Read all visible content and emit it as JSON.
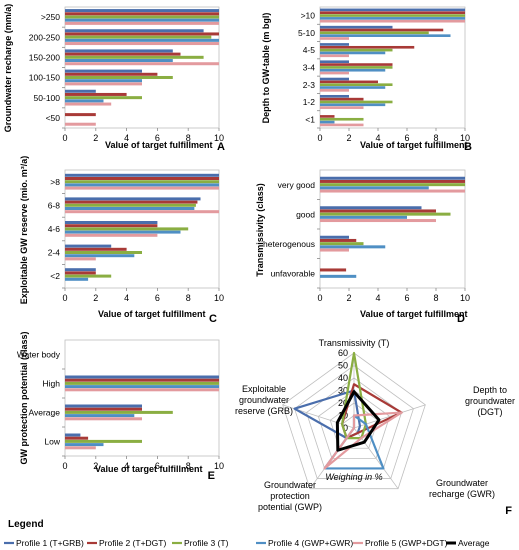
{
  "series": [
    {
      "name": "Profile 1 (T+GRB)",
      "color": "#4a6eac"
    },
    {
      "name": "Profile 2 (T+DGT)",
      "color": "#a83a37"
    },
    {
      "name": "Profile 3 (T)",
      "color": "#8aae42"
    },
    {
      "name": "Profile 4 (GWP+GWR)",
      "color": "#4f8fc4"
    },
    {
      "name": "Profile 5 (GWP+DGT)",
      "color": "#e39a9e"
    },
    {
      "name": "Average",
      "color": "#000000"
    }
  ],
  "legend": {
    "title": "Legend"
  },
  "chart_data": [
    {
      "id": "A",
      "type": "bar",
      "orientation": "horizontal",
      "ylabel": "Groundwater recharge (mm/a)",
      "xlabel": "Value of target fulfillment",
      "xlim": [
        0,
        10
      ],
      "xticks": [
        "0",
        "2",
        "4",
        "6",
        "8",
        "10"
      ],
      "categories": [
        ">250",
        "200-250",
        "150-200",
        "100-150",
        "50-100",
        "<50"
      ],
      "series": [
        {
          "name": "Profile 1 (T+GRB)",
          "values": [
            10,
            9,
            7,
            5,
            2,
            0
          ]
        },
        {
          "name": "Profile 2 (T+DGT)",
          "values": [
            10,
            10,
            7.5,
            6,
            4,
            2
          ]
        },
        {
          "name": "Profile 3 (T)",
          "values": [
            10,
            9.5,
            9,
            7,
            5,
            0
          ]
        },
        {
          "name": "Profile 4 (GWP+GWR)",
          "values": [
            10,
            10,
            7,
            5,
            2.5,
            0
          ]
        },
        {
          "name": "Profile 5 (GWP+DGT)",
          "values": [
            10,
            10,
            10,
            5,
            3,
            2
          ]
        }
      ]
    },
    {
      "id": "B",
      "type": "bar",
      "orientation": "horizontal",
      "ylabel": "Depth to GW-table (m bgl)",
      "xlabel": "Value of target fulfillment",
      "xlim": [
        0,
        10
      ],
      "xticks": [
        "0",
        "2",
        "4",
        "6",
        "8",
        "10"
      ],
      "categories": [
        ">10",
        "5-10",
        "4-5",
        "3-4",
        "2-3",
        "1-2",
        "<1"
      ],
      "series": [
        {
          "name": "Profile 1 (T+GRB)",
          "values": [
            10,
            5,
            2,
            2,
            2,
            2,
            0
          ]
        },
        {
          "name": "Profile 2 (T+DGT)",
          "values": [
            10,
            8.5,
            6.5,
            5,
            4,
            3,
            1
          ]
        },
        {
          "name": "Profile 3 (T)",
          "values": [
            10,
            7.5,
            5,
            5,
            5,
            5,
            3
          ]
        },
        {
          "name": "Profile 4 (GWP+GWR)",
          "values": [
            10,
            9,
            4.5,
            4.5,
            4.5,
            4.5,
            1
          ]
        },
        {
          "name": "Profile 5 (GWP+DGT)",
          "values": [
            10,
            2,
            2,
            2,
            2,
            3,
            3
          ]
        }
      ]
    },
    {
      "id": "C",
      "type": "bar",
      "orientation": "horizontal",
      "ylabel": "Exploitable GW reserve (mio. m³/a)",
      "xlabel": "Value of target fulfillment",
      "xlim": [
        0,
        10
      ],
      "xticks": [
        "0",
        "2",
        "4",
        "6",
        "8",
        "10"
      ],
      "categories": [
        ">8",
        "6-8",
        "4-6",
        "2-4",
        "<2"
      ],
      "series": [
        {
          "name": "Profile 1 (T+GRB)",
          "values": [
            10,
            8.8,
            6,
            3,
            2
          ]
        },
        {
          "name": "Profile 2 (T+DGT)",
          "values": [
            10,
            8.6,
            6,
            4,
            2
          ]
        },
        {
          "name": "Profile 3 (T)",
          "values": [
            10,
            8.5,
            8,
            5,
            3
          ]
        },
        {
          "name": "Profile 4 (GWP+GWR)",
          "values": [
            10,
            8.4,
            7.5,
            4.5,
            1.5
          ]
        },
        {
          "name": "Profile 5 (GWP+DGT)",
          "values": [
            10,
            10,
            6,
            2,
            0
          ]
        }
      ]
    },
    {
      "id": "D",
      "type": "bar",
      "orientation": "horizontal",
      "ylabel": "Transmissivity (class)",
      "xlabel": "Value of target fulfillment",
      "xlim": [
        0,
        10
      ],
      "xticks": [
        "0",
        "2",
        "4",
        "6",
        "8",
        "10"
      ],
      "categories": [
        "very good",
        "good",
        "heterogenous",
        "unfavorable"
      ],
      "series": [
        {
          "name": "Profile 1 (T+GRB)",
          "values": [
            10,
            7,
            2,
            0
          ]
        },
        {
          "name": "Profile 2 (T+DGT)",
          "values": [
            10,
            8,
            2.5,
            1.8
          ]
        },
        {
          "name": "Profile 3 (T)",
          "values": [
            10,
            9,
            3,
            0
          ]
        },
        {
          "name": "Profile 4 (GWP+GWR)",
          "values": [
            7.5,
            6,
            4.5,
            2.5
          ]
        },
        {
          "name": "Profile 5 (GWP+DGT)",
          "values": [
            10,
            8,
            2,
            0
          ]
        }
      ]
    },
    {
      "id": "E",
      "type": "bar",
      "orientation": "horizontal",
      "ylabel": "GW protection potential (class)",
      "xlabel": "Value of target fulfillment",
      "xlim": [
        0,
        10
      ],
      "xticks": [
        "0",
        "2",
        "4",
        "6",
        "8",
        "10"
      ],
      "categories": [
        "Water body",
        "High",
        "Average",
        "Low"
      ],
      "series": [
        {
          "name": "Profile 1 (T+GRB)",
          "values": [
            0,
            10,
            5,
            1
          ]
        },
        {
          "name": "Profile 2 (T+DGT)",
          "values": [
            0,
            10,
            5,
            1.5
          ]
        },
        {
          "name": "Profile 3 (T)",
          "values": [
            0,
            10,
            7,
            5
          ]
        },
        {
          "name": "Profile 4 (GWP+GWR)",
          "values": [
            0,
            10,
            4.5,
            2.5
          ]
        },
        {
          "name": "Profile 5 (GWP+DGT)",
          "values": [
            0,
            10,
            5,
            2
          ]
        }
      ]
    },
    {
      "id": "F",
      "type": "radar",
      "axes": [
        "Transmissivity (T)",
        "Depth to groundwater (DGT)",
        "Groundwater recharge (GWR)",
        "Groundwater protection potential (GWP)",
        "Exploitable groundwater reserve (GRB)"
      ],
      "rticks": [
        "0",
        "10",
        "20",
        "30",
        "40",
        "50",
        "60"
      ],
      "rlim": [
        0,
        60
      ],
      "center_label": "Weighing in %",
      "series": [
        {
          "name": "Profile 1 (T+GRB)",
          "values": [
            30,
            5,
            5,
            10,
            50
          ]
        },
        {
          "name": "Profile 2 (T+DGT)",
          "values": [
            35,
            40,
            5,
            10,
            10
          ]
        },
        {
          "name": "Profile 3 (T)",
          "values": [
            60,
            10,
            10,
            10,
            10
          ]
        },
        {
          "name": "Profile 4 (GWP+GWR)",
          "values": [
            10,
            10,
            40,
            40,
            0
          ]
        },
        {
          "name": "Profile 5 (GWP+DGT)",
          "values": [
            10,
            40,
            10,
            40,
            0
          ]
        },
        {
          "name": "Average",
          "values": [
            29,
            21,
            14,
            22,
            14
          ]
        }
      ]
    }
  ]
}
